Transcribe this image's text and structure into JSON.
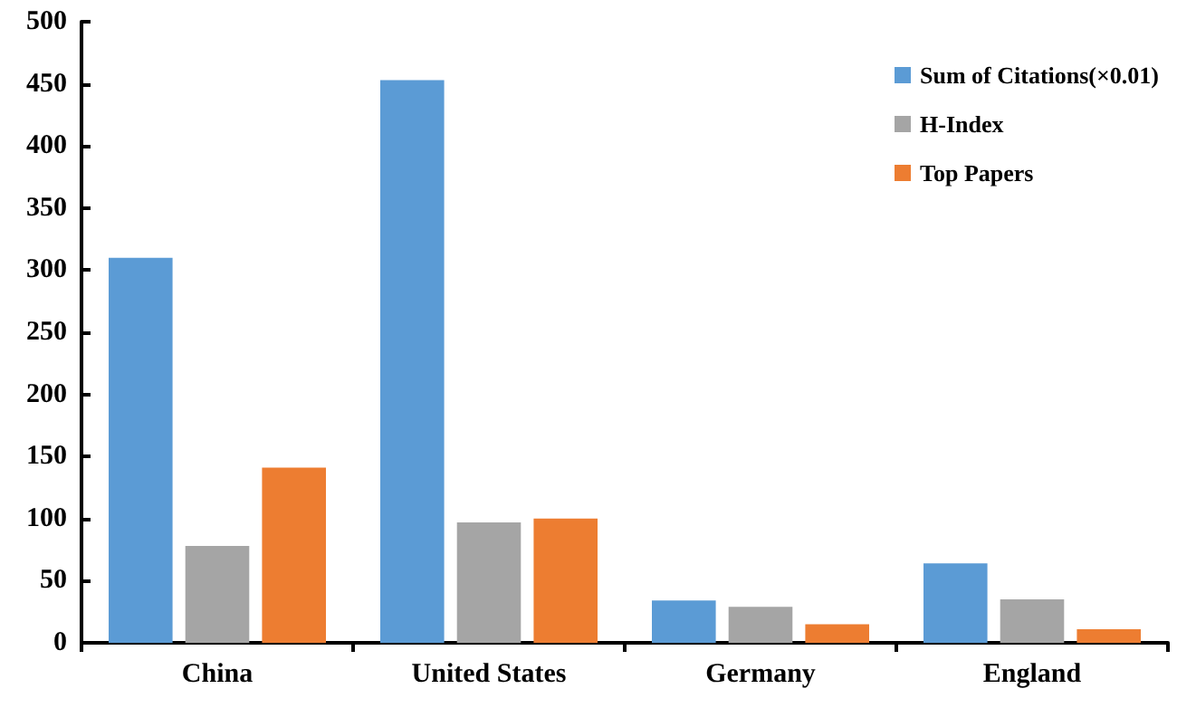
{
  "chart_data": {
    "type": "bar",
    "categories": [
      "China",
      "United States",
      "Germany",
      "England"
    ],
    "series": [
      {
        "name": "Sum of Citations(×0.01)",
        "color": "#5b9bd5",
        "values": [
          310,
          453,
          34,
          64
        ]
      },
      {
        "name": "H-Index",
        "color": "#a5a5a5",
        "values": [
          78,
          97,
          29,
          35
        ]
      },
      {
        "name": "Top Papers",
        "color": "#ed7d31",
        "values": [
          141,
          100,
          15,
          11
        ]
      }
    ],
    "ylim": [
      0,
      500
    ],
    "yticks": [
      0,
      50,
      100,
      150,
      200,
      250,
      300,
      350,
      400,
      450,
      500
    ],
    "grid": false,
    "legend": "top right"
  }
}
